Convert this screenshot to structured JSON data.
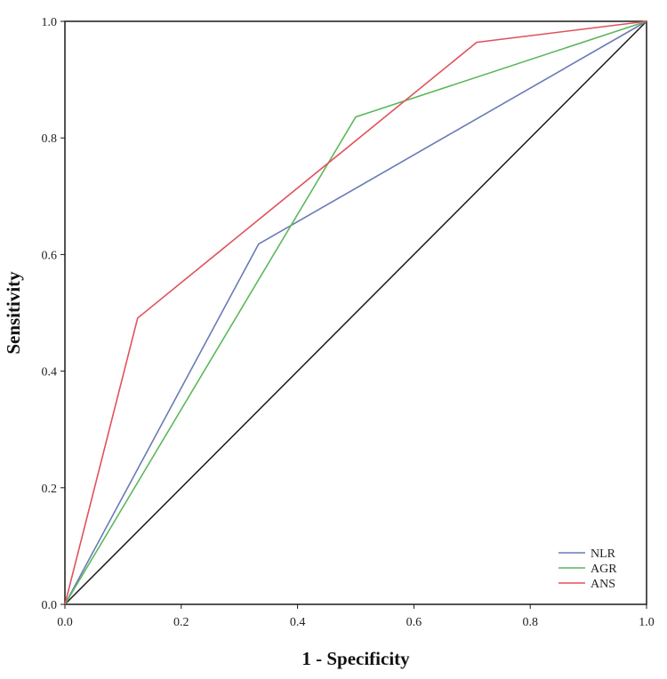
{
  "chart_data": {
    "type": "line",
    "title": "",
    "xlabel": "1 - Specificity",
    "ylabel": "Sensitivity",
    "xlim": [
      0,
      1
    ],
    "ylim": [
      0,
      1
    ],
    "xticks": [
      "0.0",
      "0.2",
      "0.4",
      "0.6",
      "0.8",
      "1.0"
    ],
    "yticks": [
      "0.0",
      "0.2",
      "0.4",
      "0.6",
      "0.8",
      "1.0"
    ],
    "grid": false,
    "legend_position": "bottom-right",
    "series": [
      {
        "name": "NLR",
        "color": "#6b7bb5",
        "x": [
          0,
          0.333,
          1
        ],
        "y": [
          0,
          0.618,
          1
        ]
      },
      {
        "name": "AGR",
        "color": "#5cb85c",
        "x": [
          0,
          0.5,
          1
        ],
        "y": [
          0,
          0.836,
          1
        ]
      },
      {
        "name": "ANS",
        "color": "#e0525c",
        "x": [
          0,
          0.125,
          0.708,
          1
        ],
        "y": [
          0,
          0.491,
          0.964,
          1
        ]
      }
    ],
    "reference_line": {
      "color": "#1a1a1a",
      "x": [
        0,
        1
      ],
      "y": [
        0,
        1
      ]
    }
  }
}
